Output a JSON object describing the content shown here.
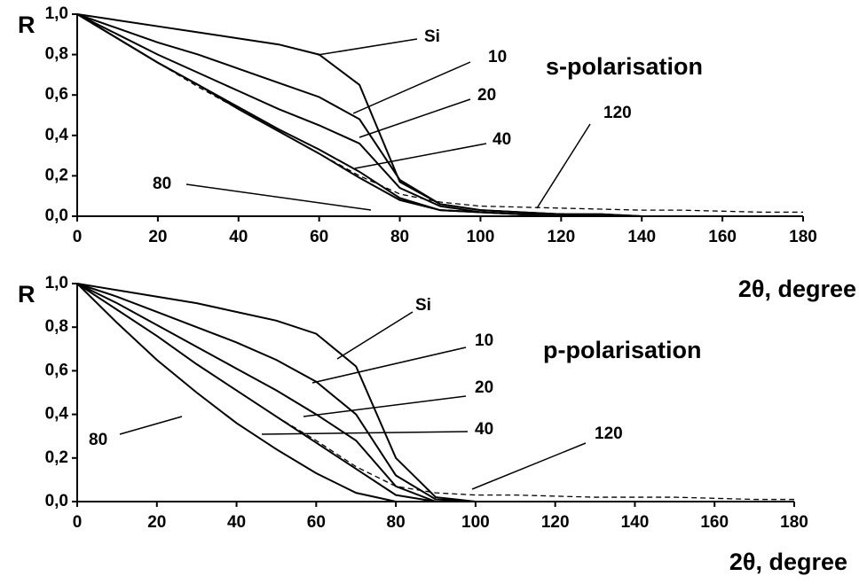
{
  "chart_data": [
    {
      "type": "line",
      "title": "s-polarisation",
      "y_label": "R",
      "x_label": "2θ, degree",
      "x": [
        0,
        10,
        20,
        30,
        40,
        50,
        60,
        70,
        80,
        90,
        100,
        110,
        120,
        130,
        140,
        150,
        160,
        170,
        180
      ],
      "xlim": [
        0,
        180
      ],
      "xticks": [
        0,
        20,
        40,
        60,
        80,
        100,
        120,
        140,
        160,
        180
      ],
      "ylim": [
        0,
        1
      ],
      "yticks": [
        {
          "value": 0,
          "label": "0,0"
        },
        {
          "value": 0.2,
          "label": "0,2"
        },
        {
          "value": 0.4,
          "label": "0,4"
        },
        {
          "value": 0.6,
          "label": "0,6"
        },
        {
          "value": 0.8,
          "label": "0,8"
        },
        {
          "value": 1,
          "label": "1,0"
        }
      ],
      "series": [
        {
          "name": "Si",
          "color": "#000000",
          "linestyle": "solid",
          "values": [
            1.0,
            0.97,
            0.94,
            0.91,
            0.88,
            0.85,
            0.8,
            0.65,
            0.17,
            0.06,
            0.03,
            0.02,
            0.01,
            0.01,
            0,
            0,
            0,
            0,
            0
          ]
        },
        {
          "name": "10",
          "color": "#000000",
          "linestyle": "solid",
          "values": [
            1.0,
            0.93,
            0.86,
            0.8,
            0.73,
            0.66,
            0.59,
            0.48,
            0.18,
            0.06,
            0.03,
            0.02,
            0.01,
            0.01,
            0,
            0,
            0,
            0,
            0
          ]
        },
        {
          "name": "20",
          "color": "#000000",
          "linestyle": "solid",
          "values": [
            1.0,
            0.9,
            0.8,
            0.71,
            0.62,
            0.53,
            0.45,
            0.36,
            0.14,
            0.05,
            0.02,
            0.01,
            0.01,
            0,
            0,
            0,
            0,
            0,
            0
          ]
        },
        {
          "name": "40",
          "color": "#000000",
          "linestyle": "solid",
          "values": [
            1.0,
            0.88,
            0.76,
            0.65,
            0.54,
            0.43,
            0.33,
            0.22,
            0.09,
            0.03,
            0.02,
            0.01,
            0.01,
            0,
            0,
            0,
            0,
            0,
            0
          ]
        },
        {
          "name": "80",
          "color": "#000000",
          "linestyle": "solid",
          "values": [
            1.0,
            0.88,
            0.76,
            0.65,
            0.53,
            0.42,
            0.31,
            0.19,
            0.08,
            0.03,
            0.02,
            0.01,
            0.01,
            0,
            0,
            0,
            0,
            0,
            0
          ]
        },
        {
          "name": "120",
          "color": "#000000",
          "linestyle": "dashed",
          "values": [
            1.0,
            0.88,
            0.76,
            0.64,
            0.53,
            0.42,
            0.31,
            0.2,
            0.11,
            0.07,
            0.05,
            0.045,
            0.04,
            0.035,
            0.03,
            0.03,
            0.025,
            0.02,
            0.02
          ]
        }
      ]
    },
    {
      "type": "line",
      "title": "p-polarisation",
      "y_label": "R",
      "x_label": "2θ, degree",
      "x": [
        0,
        10,
        20,
        30,
        40,
        50,
        60,
        70,
        80,
        90,
        100,
        110,
        120,
        130,
        140,
        150,
        160,
        170,
        180
      ],
      "xlim": [
        0,
        180
      ],
      "xticks": [
        0,
        20,
        40,
        60,
        80,
        100,
        120,
        140,
        160,
        180
      ],
      "ylim": [
        0,
        1
      ],
      "yticks": [
        {
          "value": 0,
          "label": "0,0"
        },
        {
          "value": 0.2,
          "label": "0,2"
        },
        {
          "value": 0.4,
          "label": "0,4"
        },
        {
          "value": 0.6,
          "label": "0,6"
        },
        {
          "value": 0.8,
          "label": "0,8"
        },
        {
          "value": 1,
          "label": "1,0"
        }
      ],
      "series": [
        {
          "name": "Si",
          "color": "#000000",
          "linestyle": "solid",
          "values": [
            1.0,
            0.97,
            0.94,
            0.91,
            0.87,
            0.83,
            0.77,
            0.62,
            0.2,
            0.02,
            0,
            0,
            0,
            0,
            0,
            0,
            0,
            0,
            0
          ]
        },
        {
          "name": "10",
          "color": "#000000",
          "linestyle": "solid",
          "values": [
            1.0,
            0.94,
            0.87,
            0.8,
            0.73,
            0.65,
            0.55,
            0.4,
            0.12,
            0.01,
            0,
            0,
            0,
            0,
            0,
            0,
            0,
            0,
            0
          ]
        },
        {
          "name": "20",
          "color": "#000000",
          "linestyle": "solid",
          "values": [
            1.0,
            0.91,
            0.81,
            0.71,
            0.61,
            0.51,
            0.4,
            0.28,
            0.07,
            0,
            0,
            0,
            0,
            0,
            0,
            0,
            0,
            0,
            0
          ]
        },
        {
          "name": "40",
          "color": "#000000",
          "linestyle": "solid",
          "values": [
            1.0,
            0.88,
            0.76,
            0.63,
            0.51,
            0.39,
            0.27,
            0.15,
            0.03,
            0,
            0,
            0,
            0,
            0,
            0,
            0,
            0,
            0,
            0
          ]
        },
        {
          "name": "80",
          "color": "#000000",
          "linestyle": "solid",
          "values": [
            1.0,
            0.82,
            0.65,
            0.5,
            0.36,
            0.24,
            0.13,
            0.04,
            0,
            0,
            0,
            0,
            0,
            0,
            0,
            0,
            0,
            0,
            0
          ]
        },
        {
          "name": "120",
          "color": "#000000",
          "linestyle": "dashed",
          "values": [
            1.0,
            0.88,
            0.76,
            0.63,
            0.51,
            0.39,
            0.28,
            0.16,
            0.07,
            0.04,
            0.03,
            0.03,
            0.025,
            0.02,
            0.02,
            0.02,
            0.015,
            0.01,
            0.01
          ]
        }
      ]
    }
  ]
}
